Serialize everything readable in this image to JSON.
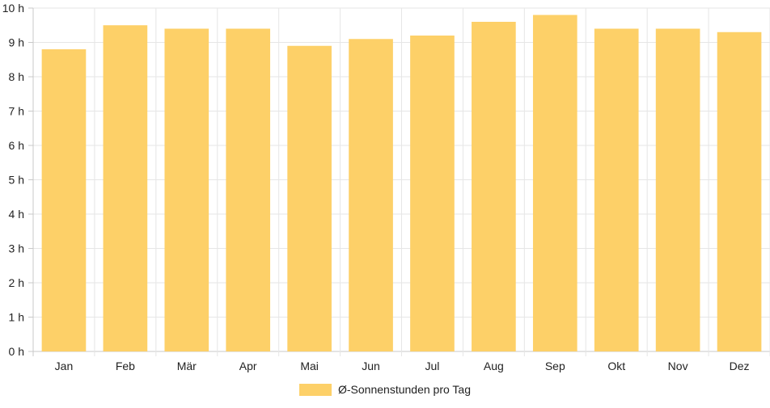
{
  "chart_data": {
    "type": "bar",
    "categories": [
      "Jan",
      "Feb",
      "Mär",
      "Apr",
      "Mai",
      "Jun",
      "Jul",
      "Aug",
      "Sep",
      "Okt",
      "Nov",
      "Dez"
    ],
    "series": [
      {
        "name": "Ø-Sonnenstunden pro Tag",
        "values": [
          8.8,
          9.5,
          9.4,
          9.4,
          8.9,
          9.1,
          9.2,
          9.6,
          9.8,
          9.4,
          9.4,
          9.3
        ],
        "color": "#fdd068"
      }
    ],
    "ylim": [
      0,
      10
    ],
    "yticks": [
      "0 h",
      "1 h",
      "2 h",
      "3 h",
      "4 h",
      "5 h",
      "6 h",
      "7 h",
      "8 h",
      "9 h",
      "10 h"
    ],
    "grid": true,
    "legend_position": "bottom"
  }
}
